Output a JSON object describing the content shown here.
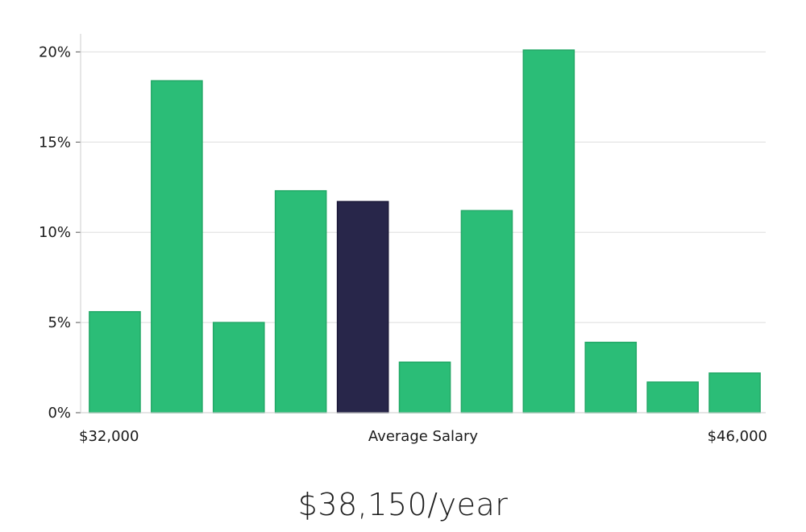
{
  "chart_data": {
    "type": "bar",
    "categories": [
      "1",
      "2",
      "3",
      "4",
      "5",
      "6",
      "7",
      "8",
      "9",
      "10",
      "11"
    ],
    "values": [
      5.6,
      18.4,
      5.0,
      12.3,
      11.7,
      2.8,
      11.2,
      20.1,
      3.9,
      1.7,
      2.2
    ],
    "highlight_index": 4,
    "ylim": [
      0,
      21
    ],
    "yticks": [
      0,
      5,
      10,
      15,
      20
    ],
    "ytick_labels": [
      "0%",
      "5%",
      "10%",
      "15%",
      "20%"
    ],
    "grid": true,
    "xlabels": {
      "left": "$32,000",
      "center": "Average Salary",
      "right": "$46,000"
    },
    "colors": {
      "bar": "#2bbd77",
      "bar_stroke": "#22a866",
      "highlight": "#28264a",
      "grid": "#dddddd",
      "axis": "#cccccc"
    }
  },
  "caption": "$38,150/year"
}
